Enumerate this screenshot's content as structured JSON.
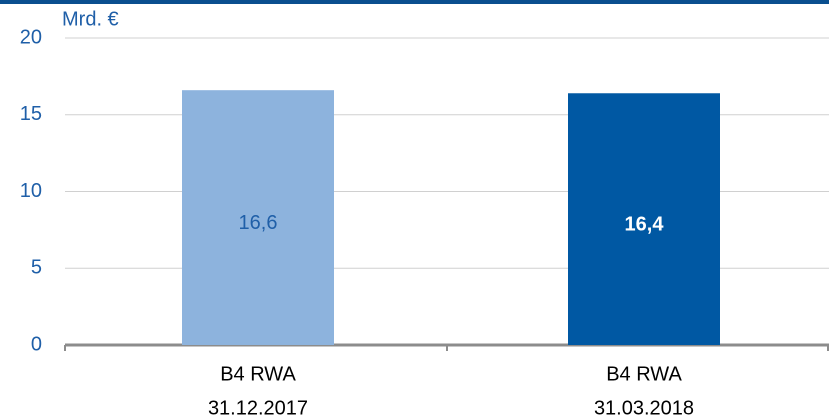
{
  "chart_data": {
    "type": "bar",
    "y_label": "Mrd. €",
    "categories": [
      [
        "B4 RWA",
        "31.12.2017"
      ],
      [
        "B4 RWA",
        "31.03.2018"
      ]
    ],
    "values": [
      16.6,
      16.4
    ],
    "value_labels": [
      "16,6",
      "16,4"
    ],
    "colors": [
      "#8db3dd",
      "#0058a3"
    ],
    "value_label_colors": [
      "#1f5fa8",
      "#ffffff"
    ],
    "value_label_bold": [
      false,
      true
    ],
    "ylim": [
      0,
      20
    ],
    "yticks": [
      0,
      5,
      10,
      15,
      20
    ],
    "grid": true
  }
}
